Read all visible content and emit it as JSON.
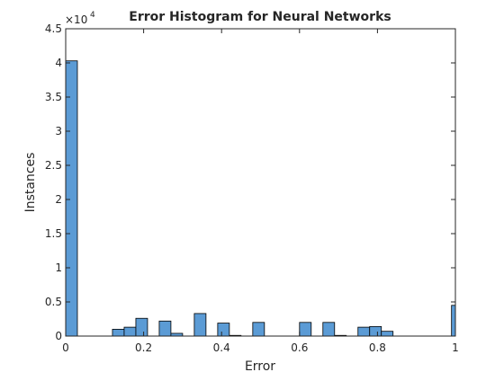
{
  "chart_data": {
    "type": "bar",
    "title": "Error Histogram for Neural Networks",
    "xlabel": "Error",
    "ylabel": "Instances",
    "y_exponent_label": "×10",
    "y_exponent_power": "4",
    "xlim": [
      0,
      1
    ],
    "ylim": [
      0,
      4.5
    ],
    "x_ticks": [
      0,
      0.2,
      0.4,
      0.6,
      0.8,
      1
    ],
    "x_tick_labels": [
      "0",
      "0.2",
      "0.4",
      "0.6",
      "0.8",
      "1"
    ],
    "y_ticks": [
      0,
      0.5,
      1,
      1.5,
      2,
      2.5,
      3,
      3.5,
      4,
      4.5
    ],
    "y_tick_labels": [
      "0",
      "0.5",
      "1",
      "1.5",
      "2",
      "2.5",
      "3",
      "3.5",
      "4",
      "4.5"
    ],
    "bin_width": 0.03,
    "grid": false,
    "bar_color": "#5B9BD5",
    "edge_color": "#000000",
    "bins": [
      {
        "x0": 0.0,
        "value": 4.03
      },
      {
        "x0": 0.12,
        "value": 0.1
      },
      {
        "x0": 0.15,
        "value": 0.13
      },
      {
        "x0": 0.18,
        "value": 0.26
      },
      {
        "x0": 0.24,
        "value": 0.22
      },
      {
        "x0": 0.27,
        "value": 0.04
      },
      {
        "x0": 0.33,
        "value": 0.33
      },
      {
        "x0": 0.39,
        "value": 0.19
      },
      {
        "x0": 0.42,
        "value": 0.01
      },
      {
        "x0": 0.48,
        "value": 0.2
      },
      {
        "x0": 0.6,
        "value": 0.2
      },
      {
        "x0": 0.66,
        "value": 0.2
      },
      {
        "x0": 0.69,
        "value": 0.01
      },
      {
        "x0": 0.75,
        "value": 0.13
      },
      {
        "x0": 0.78,
        "value": 0.14
      },
      {
        "x0": 0.81,
        "value": 0.07
      },
      {
        "x0": 0.99,
        "value": 0.45
      }
    ]
  }
}
